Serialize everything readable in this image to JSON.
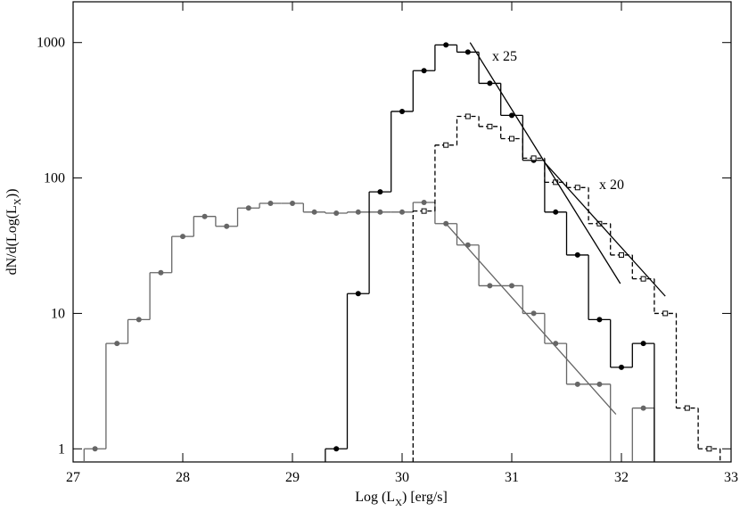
{
  "chart_data": {
    "type": "step-histogram",
    "xlabel": [
      "Log (L",
      "X",
      ") [erg/s]"
    ],
    "ylabel": [
      "dN/d(Log(L",
      "X",
      "))"
    ],
    "xlim": [
      27,
      33
    ],
    "xticks": [
      27,
      28,
      29,
      30,
      31,
      32,
      33
    ],
    "ylim": [
      0.8,
      2000
    ],
    "yticks": [
      1,
      10,
      100,
      1000
    ],
    "log_y": true,
    "series": [
      {
        "color": "#666666",
        "marker": "circle",
        "dash": false,
        "x": [
          27.2,
          27.4,
          27.6,
          27.8,
          28.0,
          28.2,
          28.4,
          28.6,
          28.8,
          29.0,
          29.2,
          29.4,
          29.6,
          29.8,
          30.0,
          30.2,
          30.4,
          30.6,
          30.8,
          31.0,
          31.2,
          31.4,
          31.6,
          31.8,
          32.0,
          32.2
        ],
        "values": [
          1,
          6,
          9,
          20,
          37,
          52,
          44,
          60,
          65,
          65,
          56,
          55,
          56,
          56,
          56,
          66,
          46,
          32,
          16,
          16,
          10,
          6,
          3,
          3,
          null,
          2
        ]
      },
      {
        "color": "#000000",
        "marker": "circle",
        "dash": false,
        "x": [
          29.4,
          29.6,
          29.8,
          30.0,
          30.2,
          30.4,
          30.6,
          30.8,
          31.0,
          31.2,
          31.4,
          31.6,
          31.8,
          32.0,
          32.2
        ],
        "values": [
          1,
          14,
          79,
          310,
          620,
          960,
          850,
          500,
          290,
          135,
          56,
          27,
          9,
          4,
          6
        ]
      },
      {
        "color": "#000000",
        "marker": "square",
        "dash": true,
        "x": [
          30.2,
          30.4,
          30.6,
          30.8,
          31.0,
          31.2,
          31.4,
          31.6,
          31.8,
          32.0,
          32.2,
          32.4,
          32.6,
          32.8
        ],
        "values": [
          57,
          175,
          285,
          240,
          195,
          140,
          93,
          85,
          46,
          27,
          18,
          10,
          2,
          1
        ]
      }
    ],
    "fits": [
      {
        "color": "#000000",
        "x": [
          30.62,
          31.99
        ],
        "values": [
          1000,
          16.6
        ]
      },
      {
        "color": "#000000",
        "x": [
          31.3,
          32.4
        ],
        "values": [
          130,
          13.4
        ]
      },
      {
        "color": "#666666",
        "x": [
          30.4,
          31.95
        ],
        "values": [
          46,
          1.8
        ]
      }
    ],
    "annotations": [
      "x 25",
      "x 20"
    ]
  }
}
